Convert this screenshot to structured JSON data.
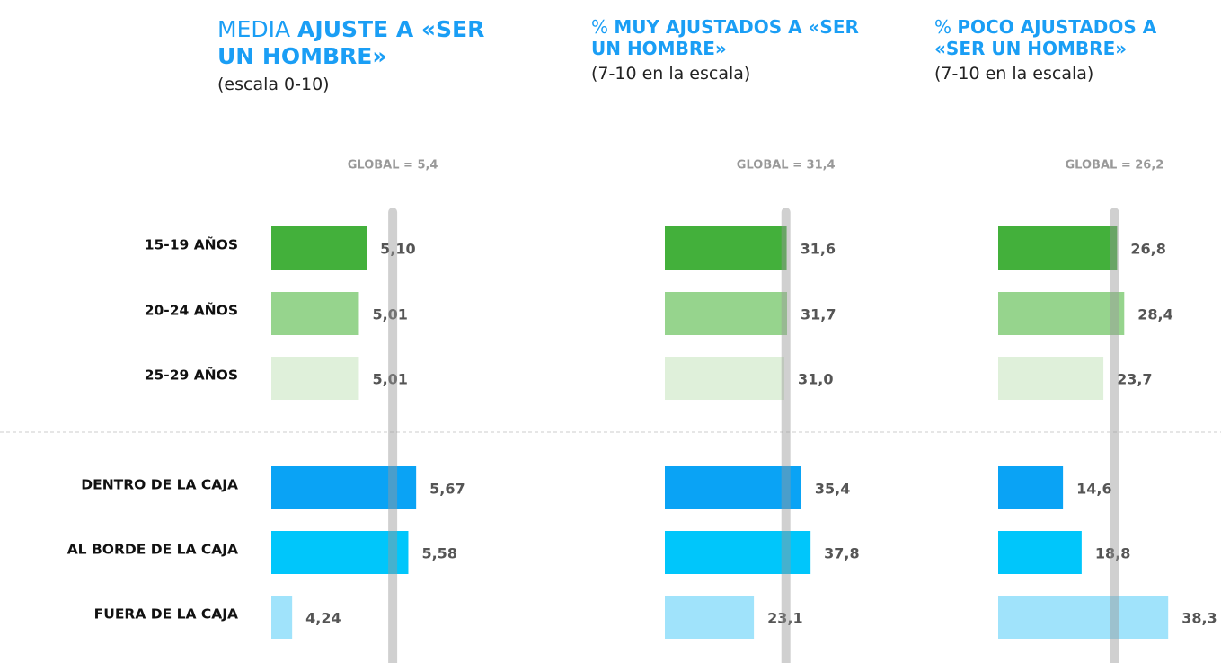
{
  "chart_data": [
    {
      "type": "bar",
      "title_lead": "MEDIA",
      "title": "AJUSTE A «SER UN HOMBRE»",
      "subtitle": "(escala 0-10)",
      "reference": {
        "value": 5.4,
        "label": "GLOBAL = 5,4"
      },
      "categories": [
        "15-19 AÑOS",
        "20-24 AÑOS",
        "25-29 AÑOS",
        "DENTRO DE LA CAJA",
        "AL BORDE DE LA CAJA",
        "FUERA DE LA CAJA"
      ],
      "values": [
        5.1,
        5.01,
        5.01,
        5.67,
        5.58,
        4.24
      ],
      "value_labels": [
        "5,10",
        "5,01",
        "5,01",
        "5,67",
        "5,58",
        "4,24"
      ],
      "colors": [
        "#43b03b",
        "#96d48d",
        "#dff0da",
        "#0aa3f5",
        "#00c6fb",
        "#a0e3fb"
      ],
      "xlim": [
        4,
        6
      ]
    },
    {
      "type": "bar",
      "title_lead": "%",
      "title": "MUY AJUSTADOS A «SER UN HOMBRE»",
      "subtitle": "(7-10 en la escala)",
      "reference": {
        "value": 31.4,
        "label": "GLOBAL = 31,4"
      },
      "values": [
        31.6,
        31.7,
        31.0,
        35.4,
        37.8,
        23.1
      ],
      "value_labels": [
        "31,6",
        "31,7",
        "31,0",
        "35,4",
        "37,8",
        "23,1"
      ],
      "colors": [
        "#43b03b",
        "#96d48d",
        "#dff0da",
        "#0aa3f5",
        "#00c6fb",
        "#a0e3fb"
      ],
      "xlim": [
        0,
        40
      ]
    },
    {
      "type": "bar",
      "title_lead": "%",
      "title": "POCO AJUSTADOS A «SER UN HOMBRE»",
      "subtitle": "(7-10 en la escala)",
      "reference": {
        "value": 26.2,
        "label": "GLOBAL = 26,2"
      },
      "values": [
        26.8,
        28.4,
        23.7,
        14.6,
        18.8,
        38.3
      ],
      "value_labels": [
        "26,8",
        "28,4",
        "23,7",
        "14,6",
        "18,8",
        "38,3"
      ],
      "colors": [
        "#43b03b",
        "#96d48d",
        "#dff0da",
        "#0aa3f5",
        "#00c6fb",
        "#a0e3fb"
      ],
      "xlim": [
        0,
        40
      ]
    }
  ]
}
